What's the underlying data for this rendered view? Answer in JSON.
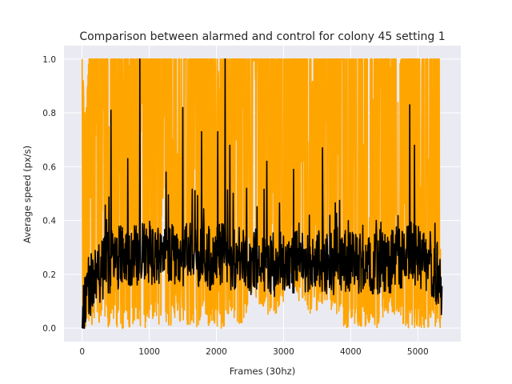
{
  "chart_data": {
    "type": "line",
    "title": "Comparison between alarmed and control for colony 45 setting 1",
    "xlabel": "Frames (30hz)",
    "ylabel": "Average speed (px/s)",
    "xlim": [
      -270,
      5640
    ],
    "ylim": [
      -0.05,
      1.05
    ],
    "xticks": [
      0,
      1000,
      2000,
      3000,
      4000,
      5000
    ],
    "yticks": [
      0.0,
      0.2,
      0.4,
      0.6,
      0.8,
      1.0
    ],
    "xtick_labels": [
      "0",
      "1000",
      "2000",
      "3000",
      "4000",
      "5000"
    ],
    "ytick_labels": [
      "0.0",
      "0.2",
      "0.4",
      "0.6",
      "0.8",
      "1.0"
    ],
    "grid": true,
    "background": "#eaeaf2",
    "series": [
      {
        "color": "#ffa500",
        "x_range": [
          0,
          5340
        ],
        "value_range": [
          0.0,
          1.0
        ],
        "profile_x": [
          0,
          50,
          100,
          200,
          300,
          400,
          450,
          500,
          600,
          700,
          800,
          900,
          1000,
          1100,
          1150,
          1200,
          1300,
          1400,
          1500,
          1600,
          1700,
          1800,
          1900,
          2000,
          2100,
          2200,
          2300,
          2400,
          2500,
          2600,
          2700,
          2800,
          2900,
          3000,
          3100,
          3200,
          3300,
          3400,
          3500,
          3600,
          3700,
          3800,
          3900,
          4000,
          4100,
          4200,
          4300,
          4400,
          4500,
          4600,
          4700,
          4800,
          4900,
          5000,
          5100,
          5200,
          5300,
          5340
        ],
        "profile_low": [
          0.0,
          0.0,
          0.0,
          0.0,
          0.0,
          0.0,
          0.05,
          0.0,
          0.0,
          0.0,
          0.02,
          0.0,
          0.0,
          0.05,
          0.0,
          0.0,
          0.0,
          0.05,
          0.0,
          0.0,
          0.0,
          0.03,
          0.0,
          0.0,
          0.0,
          0.05,
          0.0,
          0.0,
          0.1,
          0.05,
          0.05,
          0.05,
          0.05,
          0.1,
          0.15,
          0.1,
          0.1,
          0.05,
          0.05,
          0.1,
          0.05,
          0.05,
          0.0,
          0.0,
          0.0,
          0.0,
          0.0,
          0.0,
          0.05,
          0.05,
          0.05,
          0.0,
          0.0,
          0.0,
          0.0,
          0.0,
          0.0,
          0.0
        ],
        "profile_high": [
          1.0,
          0.75,
          1.0,
          1.0,
          1.0,
          1.0,
          1.0,
          1.0,
          1.0,
          1.0,
          1.0,
          1.0,
          1.0,
          1.0,
          1.0,
          1.0,
          1.0,
          1.0,
          1.0,
          1.0,
          1.0,
          1.0,
          1.0,
          1.0,
          1.0,
          1.0,
          1.0,
          1.0,
          1.0,
          1.0,
          1.0,
          1.0,
          1.0,
          1.0,
          1.0,
          1.0,
          1.0,
          1.0,
          1.0,
          1.0,
          1.0,
          1.0,
          1.0,
          1.0,
          1.0,
          1.0,
          1.0,
          1.0,
          1.0,
          1.0,
          1.0,
          1.0,
          1.0,
          1.0,
          1.0,
          1.0,
          1.0,
          1.0
        ]
      },
      {
        "color": "#000000",
        "x_range": [
          0,
          5360
        ],
        "baseline_x": [
          0,
          50,
          100,
          200,
          300,
          400,
          500,
          600,
          700,
          800,
          900,
          1000,
          1100,
          1200,
          1300,
          1400,
          1500,
          1600,
          1700,
          1800,
          1900,
          2000,
          2100,
          2200,
          2300,
          2400,
          2500,
          2600,
          2700,
          2800,
          2900,
          3000,
          3100,
          3200,
          3300,
          3400,
          3500,
          3600,
          3700,
          3800,
          3900,
          4000,
          4100,
          4200,
          4300,
          4400,
          4500,
          4600,
          4700,
          4800,
          4900,
          5000,
          5100,
          5200,
          5300,
          5360
        ],
        "baseline_y": [
          0.0,
          0.1,
          0.15,
          0.2,
          0.22,
          0.24,
          0.26,
          0.27,
          0.27,
          0.26,
          0.27,
          0.28,
          0.26,
          0.25,
          0.27,
          0.26,
          0.27,
          0.28,
          0.27,
          0.27,
          0.26,
          0.27,
          0.28,
          0.26,
          0.26,
          0.25,
          0.24,
          0.25,
          0.24,
          0.23,
          0.24,
          0.25,
          0.24,
          0.25,
          0.24,
          0.24,
          0.25,
          0.25,
          0.24,
          0.24,
          0.25,
          0.24,
          0.24,
          0.25,
          0.24,
          0.24,
          0.24,
          0.25,
          0.25,
          0.26,
          0.28,
          0.26,
          0.24,
          0.22,
          0.2,
          0.08
        ],
        "peaks": [
          {
            "x": 430,
            "y": 0.81
          },
          {
            "x": 860,
            "y": 1.0
          },
          {
            "x": 680,
            "y": 0.63
          },
          {
            "x": 1500,
            "y": 0.82
          },
          {
            "x": 1780,
            "y": 0.73
          },
          {
            "x": 2020,
            "y": 0.73
          },
          {
            "x": 2130,
            "y": 1.0
          },
          {
            "x": 2200,
            "y": 0.68
          },
          {
            "x": 2750,
            "y": 0.62
          },
          {
            "x": 3580,
            "y": 0.67
          },
          {
            "x": 4880,
            "y": 0.83
          },
          {
            "x": 4950,
            "y": 0.68
          },
          {
            "x": 3150,
            "y": 0.59
          },
          {
            "x": 1250,
            "y": 0.58
          },
          {
            "x": 2450,
            "y": 0.52
          }
        ]
      }
    ]
  }
}
